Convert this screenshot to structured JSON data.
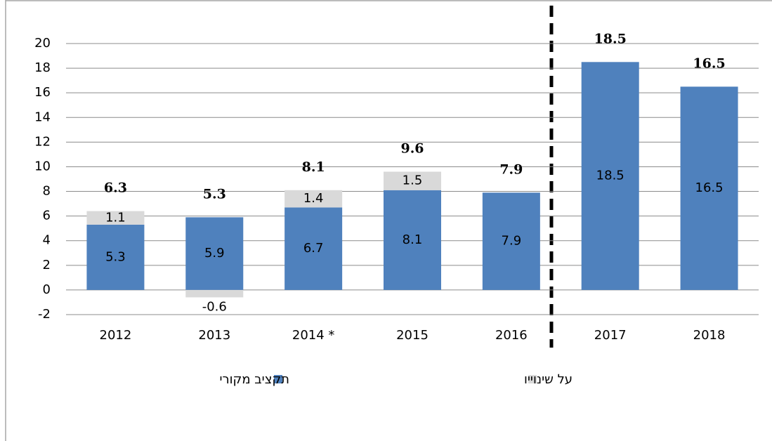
{
  "chart_data": {
    "type": "stacked_bar",
    "categories": [
      "2012",
      "2013",
      "2014 *",
      "2015",
      "2016",
      "2017",
      "2018"
    ],
    "series": [
      {
        "name": "תקציב מקורי",
        "color": "#4f81bd",
        "values": [
          5.3,
          5.9,
          6.7,
          8.1,
          7.9,
          18.5,
          16.5
        ]
      },
      {
        "name": "על שינוייו",
        "color": "#d9d9d9",
        "values": [
          1.1,
          -0.6,
          1.4,
          1.5,
          null,
          null,
          null
        ]
      }
    ],
    "totals": [
      6.3,
      5.3,
      8.1,
      9.6,
      7.9,
      18.5,
      16.5
    ],
    "ylim": [
      -2,
      20
    ],
    "yticks": [
      -2,
      0,
      2,
      4,
      6,
      8,
      10,
      12,
      14,
      16,
      18,
      20
    ],
    "grid": true
  }
}
